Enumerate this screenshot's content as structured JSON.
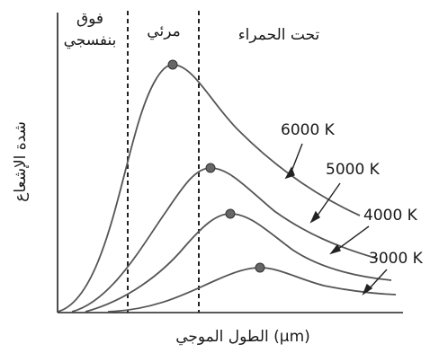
{
  "chart_data": {
    "type": "line",
    "xlabel": "الطول الموجي (μm)",
    "ylabel": "شدة الإشعاع",
    "regions": [
      {
        "name": "فوق بنفسجي",
        "lines": [
          "فوق",
          "بنفسجي"
        ]
      },
      {
        "name": "مرئي",
        "lines": [
          "مرئي"
        ]
      },
      {
        "name": "تحت الحمراء",
        "lines": [
          "تحت الحمراء"
        ]
      }
    ],
    "region_bounds": [
      0.4,
      0.7
    ],
    "xlim": [
      0,
      3.0
    ],
    "ylim": [
      0,
      1.05
    ],
    "series": [
      {
        "name": "6000 K",
        "temperature": 6000,
        "peak_x": 0.48
      },
      {
        "name": "5000 K",
        "temperature": 5000,
        "peak_x": 0.58
      },
      {
        "name": "4000 K",
        "temperature": 4000,
        "peak_x": 0.72
      },
      {
        "name": "3000 K",
        "temperature": 3000,
        "peak_x": 0.97
      }
    ]
  }
}
